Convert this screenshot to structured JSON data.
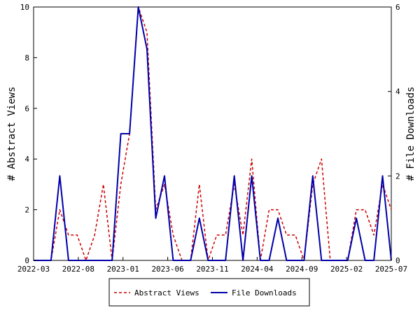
{
  "chart_data": {
    "type": "line",
    "x_ticks": [
      "2022-03",
      "2022-08",
      "2023-01",
      "2023-06",
      "2023-11",
      "2024-04",
      "2024-09",
      "2025-02",
      "2025-07"
    ],
    "y_left": {
      "label": "# Abstract Views",
      "range": [
        0,
        10
      ],
      "ticks": [
        0,
        2,
        4,
        6,
        8,
        10
      ]
    },
    "y_right": {
      "label": "# File Downloads",
      "range": [
        0,
        6
      ],
      "ticks": [
        0,
        2,
        4,
        6
      ]
    },
    "series": [
      {
        "name": "Abstract Views",
        "axis": "left",
        "color": "#cc0000",
        "style": "dashed",
        "values": [
          0,
          0,
          0,
          2,
          1,
          1,
          0,
          1,
          3,
          0,
          3,
          5,
          10,
          9,
          2,
          3,
          1,
          0,
          0,
          3,
          0,
          1,
          1,
          3,
          1,
          4,
          0,
          2,
          2,
          1,
          1,
          0,
          3,
          4,
          0,
          0,
          0,
          2,
          2,
          1,
          3,
          2
        ]
      },
      {
        "name": "File Downloads",
        "axis": "right",
        "color": "#0000aa",
        "style": "solid",
        "values": [
          0,
          0,
          0,
          2,
          0,
          0,
          0,
          0,
          0,
          0,
          3,
          3,
          6,
          5,
          1,
          2,
          0,
          0,
          0,
          1,
          0,
          0,
          0,
          2,
          0,
          2,
          0,
          0,
          1,
          0,
          0,
          0,
          2,
          0,
          0,
          0,
          0,
          1,
          0,
          0,
          2,
          0
        ]
      }
    ],
    "legend": {
      "position": "bottom-center"
    },
    "grid": false
  }
}
